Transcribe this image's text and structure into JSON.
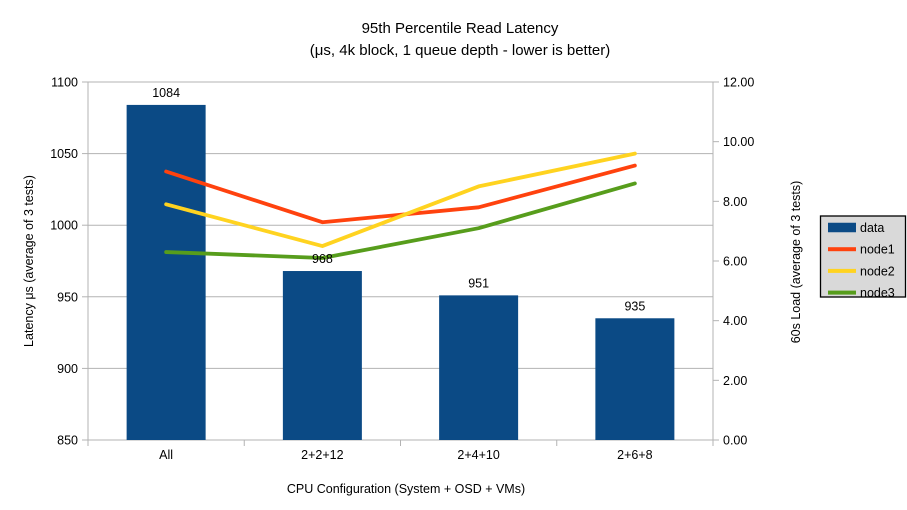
{
  "title": {
    "line1": "95th Percentile Read Latency",
    "line2": "(μs, 4k block, 1 queue depth - lower is better)"
  },
  "chart_data": {
    "type": "bar",
    "subtype": "bar-line-combo",
    "categories": [
      "All",
      "2+2+12",
      "2+4+10",
      "2+6+8"
    ],
    "bar_series": {
      "name": "data",
      "values": [
        1084,
        968,
        951,
        935
      ],
      "data_labels": [
        "1084",
        "968",
        "951",
        "935"
      ],
      "color": "#0b4a85",
      "axis": "left"
    },
    "line_series": [
      {
        "name": "node1",
        "color": "#ff420e",
        "axis": "right",
        "values": [
          9.0,
          7.3,
          7.8,
          9.2
        ]
      },
      {
        "name": "node2",
        "color": "#ffd320",
        "axis": "right",
        "values": [
          7.9,
          6.5,
          8.5,
          9.6
        ]
      },
      {
        "name": "node3",
        "color": "#579d1c",
        "axis": "right",
        "values": [
          6.3,
          6.1,
          7.1,
          8.6
        ]
      }
    ],
    "left_axis": {
      "title": "Latency μs (average of 3 tests)",
      "min": 850,
      "max": 1100,
      "step": 50,
      "tick_labels": [
        "850",
        "900",
        "950",
        "1000",
        "1050",
        "1100"
      ]
    },
    "right_axis": {
      "title": "60s Load (average of 3 tests)",
      "min": 0,
      "max": 12,
      "step": 2,
      "tick_labels": [
        "0.00",
        "2.00",
        "4.00",
        "6.00",
        "8.00",
        "10.00",
        "12.00"
      ]
    },
    "x_axis": {
      "title": "CPU Configuration (System + OSD + VMs)"
    },
    "legend": {
      "position": "right",
      "background": "#d9d9d9",
      "border_color": "#000000",
      "items": [
        {
          "label": "data",
          "swatch": "rect",
          "color": "#0b4a85"
        },
        {
          "label": "node1",
          "swatch": "line",
          "color": "#ff420e"
        },
        {
          "label": "node2",
          "swatch": "line",
          "color": "#ffd320"
        },
        {
          "label": "node3",
          "swatch": "line",
          "color": "#579d1c"
        }
      ]
    },
    "grid": true,
    "grid_color": "#b3b3b3",
    "background": "#ffffff"
  }
}
